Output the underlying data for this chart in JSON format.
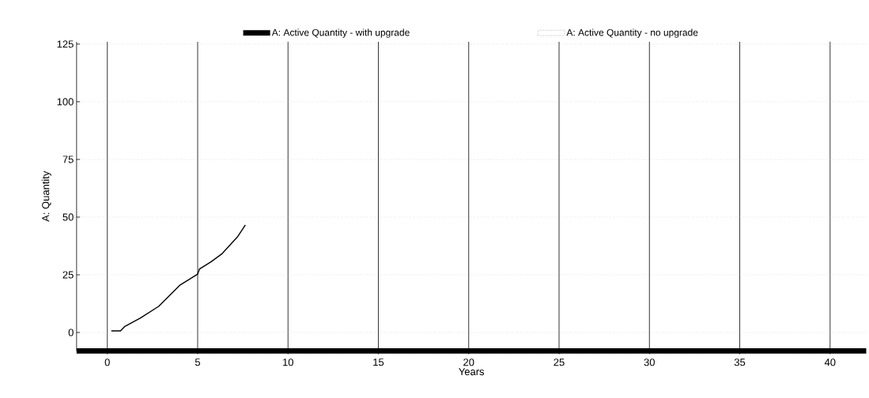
{
  "chart_data": {
    "type": "line",
    "xlabel": "Years",
    "ylabel": "A: Quantity",
    "xlim": [
      -1.7,
      42
    ],
    "ylim": [
      -8,
      126
    ],
    "xticks": [
      0,
      5,
      10,
      15,
      20,
      25,
      30,
      35,
      40
    ],
    "yticks": [
      0,
      25,
      50,
      75,
      100,
      125
    ],
    "grid": true,
    "legend": "top",
    "line_style": "solid",
    "marker": "none",
    "series": [
      {
        "name": "A: Active Quantity - with upgrade",
        "color": "#000000",
        "x": [
          0.22,
          0.73,
          0.95,
          1.82,
          2.84,
          3.06,
          4.0,
          5.0,
          5.1,
          5.75,
          6.33,
          7.2,
          7.64
        ],
        "values": [
          0.7,
          0.7,
          2.5,
          6.2,
          11.3,
          13.0,
          20.4,
          25.3,
          27.5,
          30.7,
          34.0,
          41.4,
          46.6
        ]
      },
      {
        "name": "A: Active Quantity  - no upgrade",
        "color": "#ffffff"
      }
    ]
  }
}
